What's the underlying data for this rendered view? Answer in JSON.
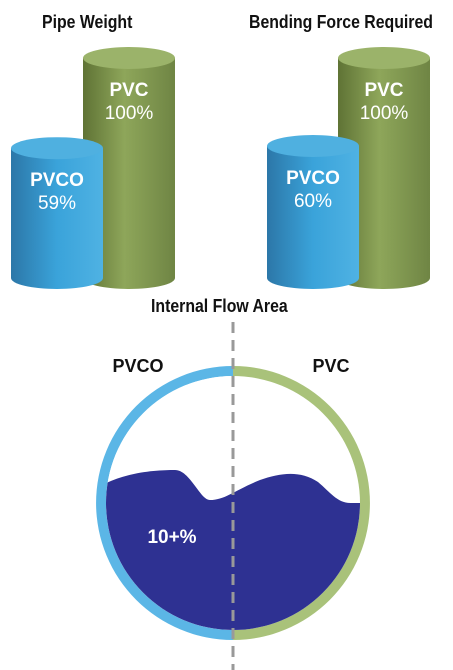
{
  "chart_data": [
    {
      "type": "bar",
      "title": "Pipe Weight",
      "categories": [
        "PVCO",
        "PVC"
      ],
      "values": [
        59,
        100
      ],
      "value_labels": [
        "59%",
        "100%"
      ],
      "ylim": [
        0,
        100
      ],
      "grid": false,
      "colors": [
        "#3f9fd1",
        "#8da05a"
      ]
    },
    {
      "type": "bar",
      "title": "Bending Force Required",
      "categories": [
        "PVCO",
        "PVC"
      ],
      "values": [
        60,
        100
      ],
      "value_labels": [
        "60%",
        "100%"
      ],
      "ylim": [
        0,
        100
      ],
      "grid": false,
      "colors": [
        "#3f9fd1",
        "#8da05a"
      ]
    },
    {
      "type": "pie",
      "title": "Internal Flow Area",
      "categories": [
        "PVCO",
        "PVC"
      ],
      "annotation": "10+%",
      "colors": [
        "#5bb6e6",
        "#a9c27a"
      ],
      "fill_color": "#2e3192"
    }
  ]
}
